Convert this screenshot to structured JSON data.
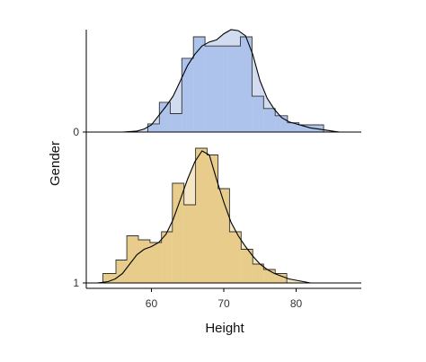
{
  "chart_data": {
    "type": "ridgeline_histogram_density",
    "xlabel": "Height",
    "ylabel": "Gender",
    "x_ticks": [
      60,
      70,
      80
    ],
    "xlim": [
      51,
      89
    ],
    "y_ticks": [
      "0",
      "1"
    ],
    "grid": false,
    "series": [
      {
        "name": "0",
        "color": "#aec3ec",
        "density_fill": "#d2dcf0",
        "hist_bins": [
          [
            59.5,
            61.1,
            0.08
          ],
          [
            61.1,
            62.6,
            0.29
          ],
          [
            62.6,
            64.2,
            0.18
          ],
          [
            64.2,
            65.8,
            0.72
          ],
          [
            65.8,
            67.4,
            0.93
          ],
          [
            67.4,
            69.0,
            0.84
          ],
          [
            69.0,
            70.6,
            0.84
          ],
          [
            70.6,
            72.3,
            0.84
          ],
          [
            72.3,
            73.9,
            0.93
          ],
          [
            73.9,
            75.5,
            0.35
          ],
          [
            75.5,
            77.1,
            0.23
          ],
          [
            77.1,
            78.8,
            0.16
          ],
          [
            78.8,
            80.4,
            0.09
          ],
          [
            80.4,
            82.0,
            0.07
          ],
          [
            82.0,
            83.8,
            0.07
          ],
          [
            83.8,
            85.8,
            0.0
          ]
        ],
        "density": [
          [
            52.5,
            0.0
          ],
          [
            54,
            0.0
          ],
          [
            56,
            0.0
          ],
          [
            58,
            0.01
          ],
          [
            59,
            0.03
          ],
          [
            60,
            0.07
          ],
          [
            61,
            0.16
          ],
          [
            62,
            0.25
          ],
          [
            63,
            0.35
          ],
          [
            64,
            0.5
          ],
          [
            65,
            0.65
          ],
          [
            66,
            0.76
          ],
          [
            67,
            0.84
          ],
          [
            68,
            0.88
          ],
          [
            69,
            0.9
          ],
          [
            70,
            0.96
          ],
          [
            71,
            1.0
          ],
          [
            72,
            0.99
          ],
          [
            73,
            0.94
          ],
          [
            74,
            0.76
          ],
          [
            75,
            0.5
          ],
          [
            76,
            0.33
          ],
          [
            77,
            0.22
          ],
          [
            78,
            0.14
          ],
          [
            79,
            0.1
          ],
          [
            80,
            0.08
          ],
          [
            81,
            0.06
          ],
          [
            82,
            0.04
          ],
          [
            83,
            0.03
          ],
          [
            84,
            0.02
          ],
          [
            85,
            0.01
          ],
          [
            86,
            0.0
          ],
          [
            88,
            0.0
          ]
        ]
      },
      {
        "name": "1",
        "color": "#e8cc8c",
        "density_fill": "#f5e7c3",
        "hist_bins": [
          [
            53.3,
            55.1,
            0.07
          ],
          [
            55.1,
            56.6,
            0.17
          ],
          [
            56.6,
            58.2,
            0.35
          ],
          [
            58.2,
            59.8,
            0.32
          ],
          [
            59.8,
            61.4,
            0.3
          ],
          [
            61.4,
            62.9,
            0.38
          ],
          [
            62.9,
            64.5,
            0.74
          ],
          [
            64.5,
            66.1,
            0.58
          ],
          [
            66.1,
            67.7,
            1.0
          ],
          [
            67.7,
            69.2,
            0.95
          ],
          [
            69.2,
            70.8,
            0.7
          ],
          [
            70.8,
            72.4,
            0.38
          ],
          [
            72.4,
            74.0,
            0.25
          ],
          [
            74.0,
            75.5,
            0.14
          ],
          [
            75.5,
            77.1,
            0.1
          ],
          [
            77.1,
            78.7,
            0.07
          ]
        ],
        "density": [
          [
            52.5,
            0.0
          ],
          [
            54,
            0.01
          ],
          [
            55,
            0.03
          ],
          [
            56,
            0.07
          ],
          [
            57,
            0.14
          ],
          [
            58,
            0.21
          ],
          [
            59,
            0.25
          ],
          [
            60,
            0.27
          ],
          [
            61,
            0.3
          ],
          [
            62,
            0.36
          ],
          [
            63,
            0.47
          ],
          [
            64,
            0.62
          ],
          [
            65,
            0.77
          ],
          [
            66,
            0.9
          ],
          [
            67,
            0.98
          ],
          [
            68,
            0.95
          ],
          [
            69,
            0.77
          ],
          [
            70,
            0.6
          ],
          [
            71,
            0.45
          ],
          [
            72,
            0.35
          ],
          [
            73,
            0.27
          ],
          [
            74,
            0.2
          ],
          [
            75,
            0.14
          ],
          [
            76,
            0.1
          ],
          [
            77,
            0.07
          ],
          [
            78,
            0.05
          ],
          [
            79,
            0.03
          ],
          [
            80,
            0.02
          ],
          [
            81,
            0.01
          ],
          [
            82,
            0.0
          ],
          [
            84,
            0.0
          ],
          [
            88,
            0.0
          ]
        ]
      }
    ]
  }
}
